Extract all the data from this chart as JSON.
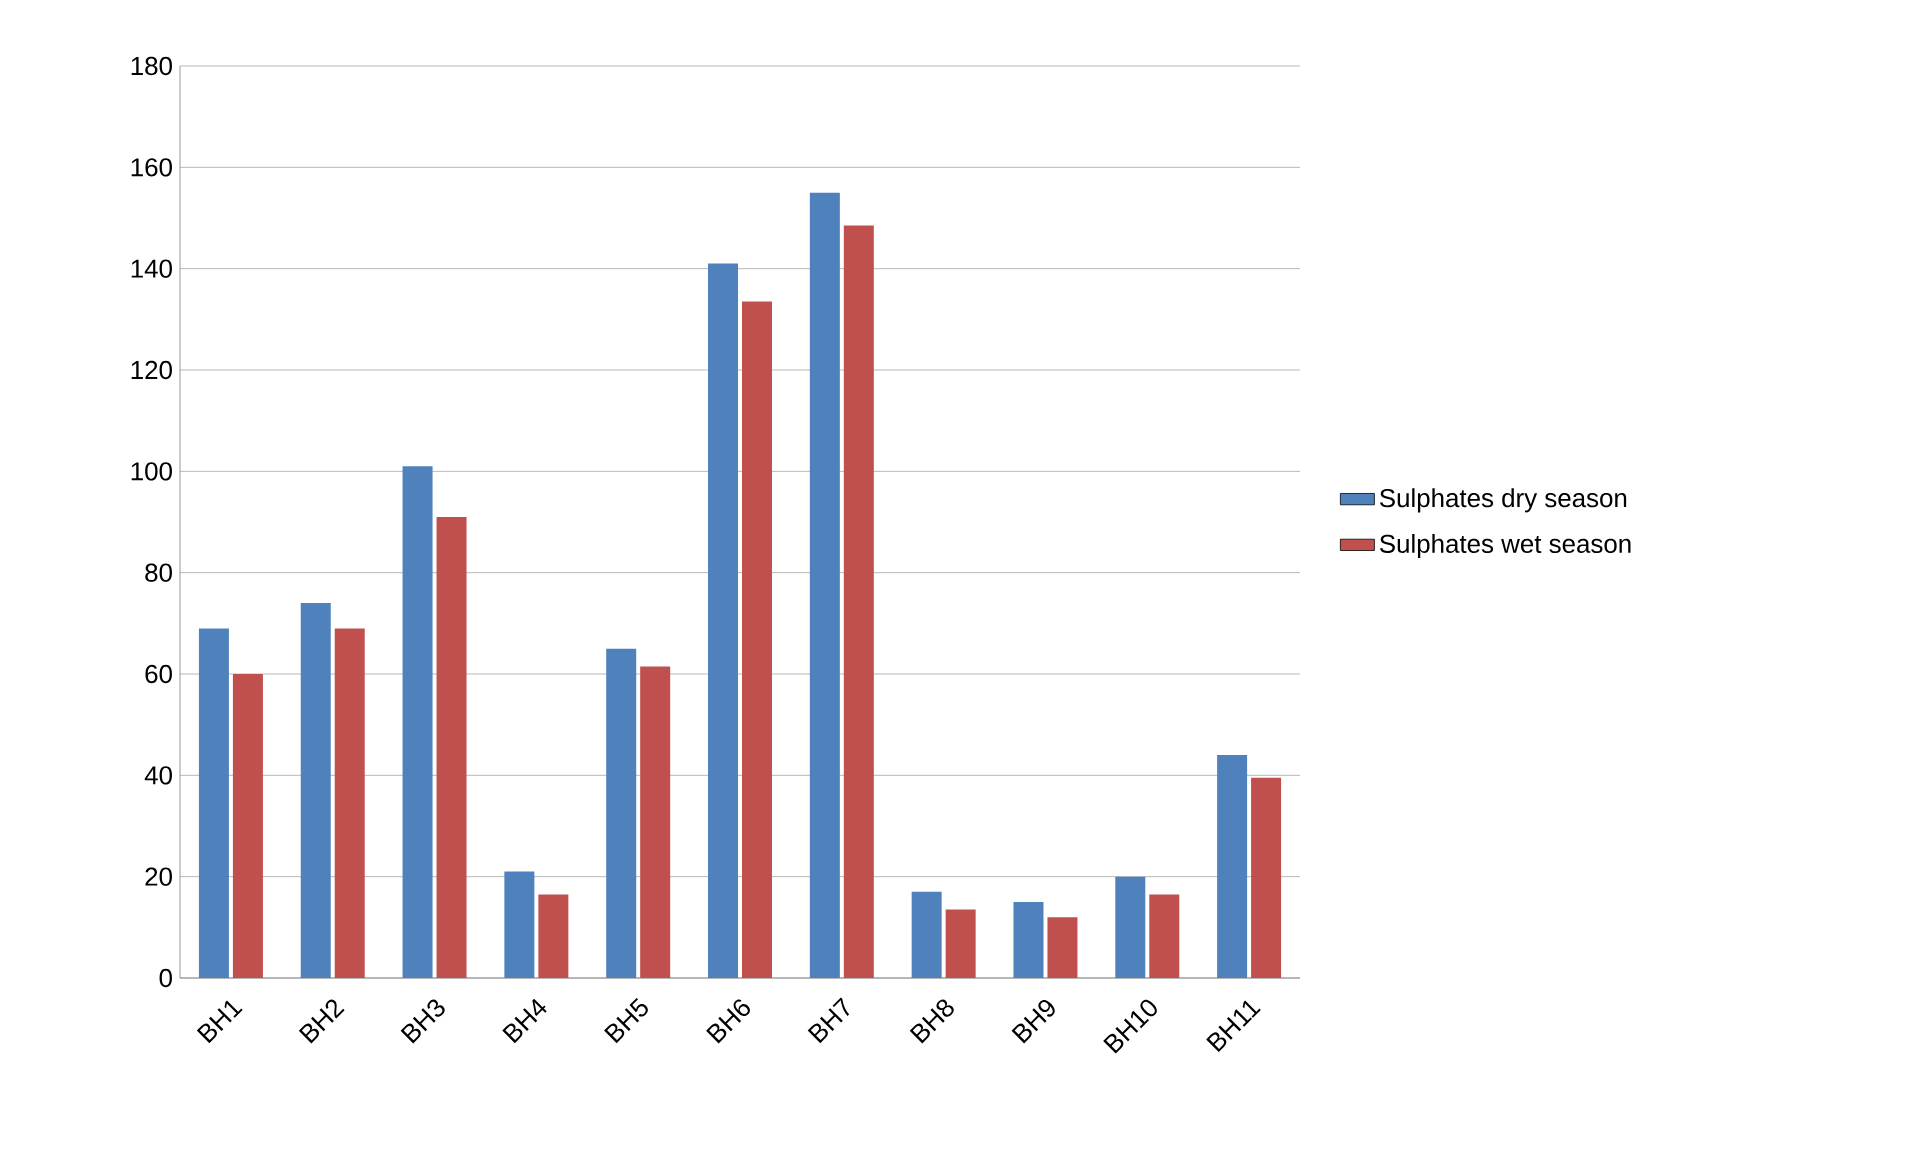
{
  "chart_data": {
    "type": "bar",
    "categories": [
      "BH1",
      "BH2",
      "BH3",
      "BH4",
      "BH5",
      "BH6",
      "BH7",
      "BH8",
      "BH9",
      "BH10",
      "BH11"
    ],
    "series": [
      {
        "name": "Sulphates dry season",
        "color": "#4f81bd",
        "values": [
          69,
          74,
          101,
          21,
          65,
          141,
          155,
          17,
          15,
          20,
          44
        ]
      },
      {
        "name": "Sulphates wet season",
        "color": "#c0504d",
        "values": [
          60,
          69,
          91,
          16.5,
          61.5,
          133.5,
          148.5,
          13.5,
          12,
          16.5,
          39.5
        ]
      }
    ],
    "ylim": [
      0,
      180
    ],
    "yticks": [
      0,
      20,
      40,
      60,
      80,
      100,
      120,
      140,
      160,
      180
    ],
    "grid": "y",
    "legend": "right"
  }
}
